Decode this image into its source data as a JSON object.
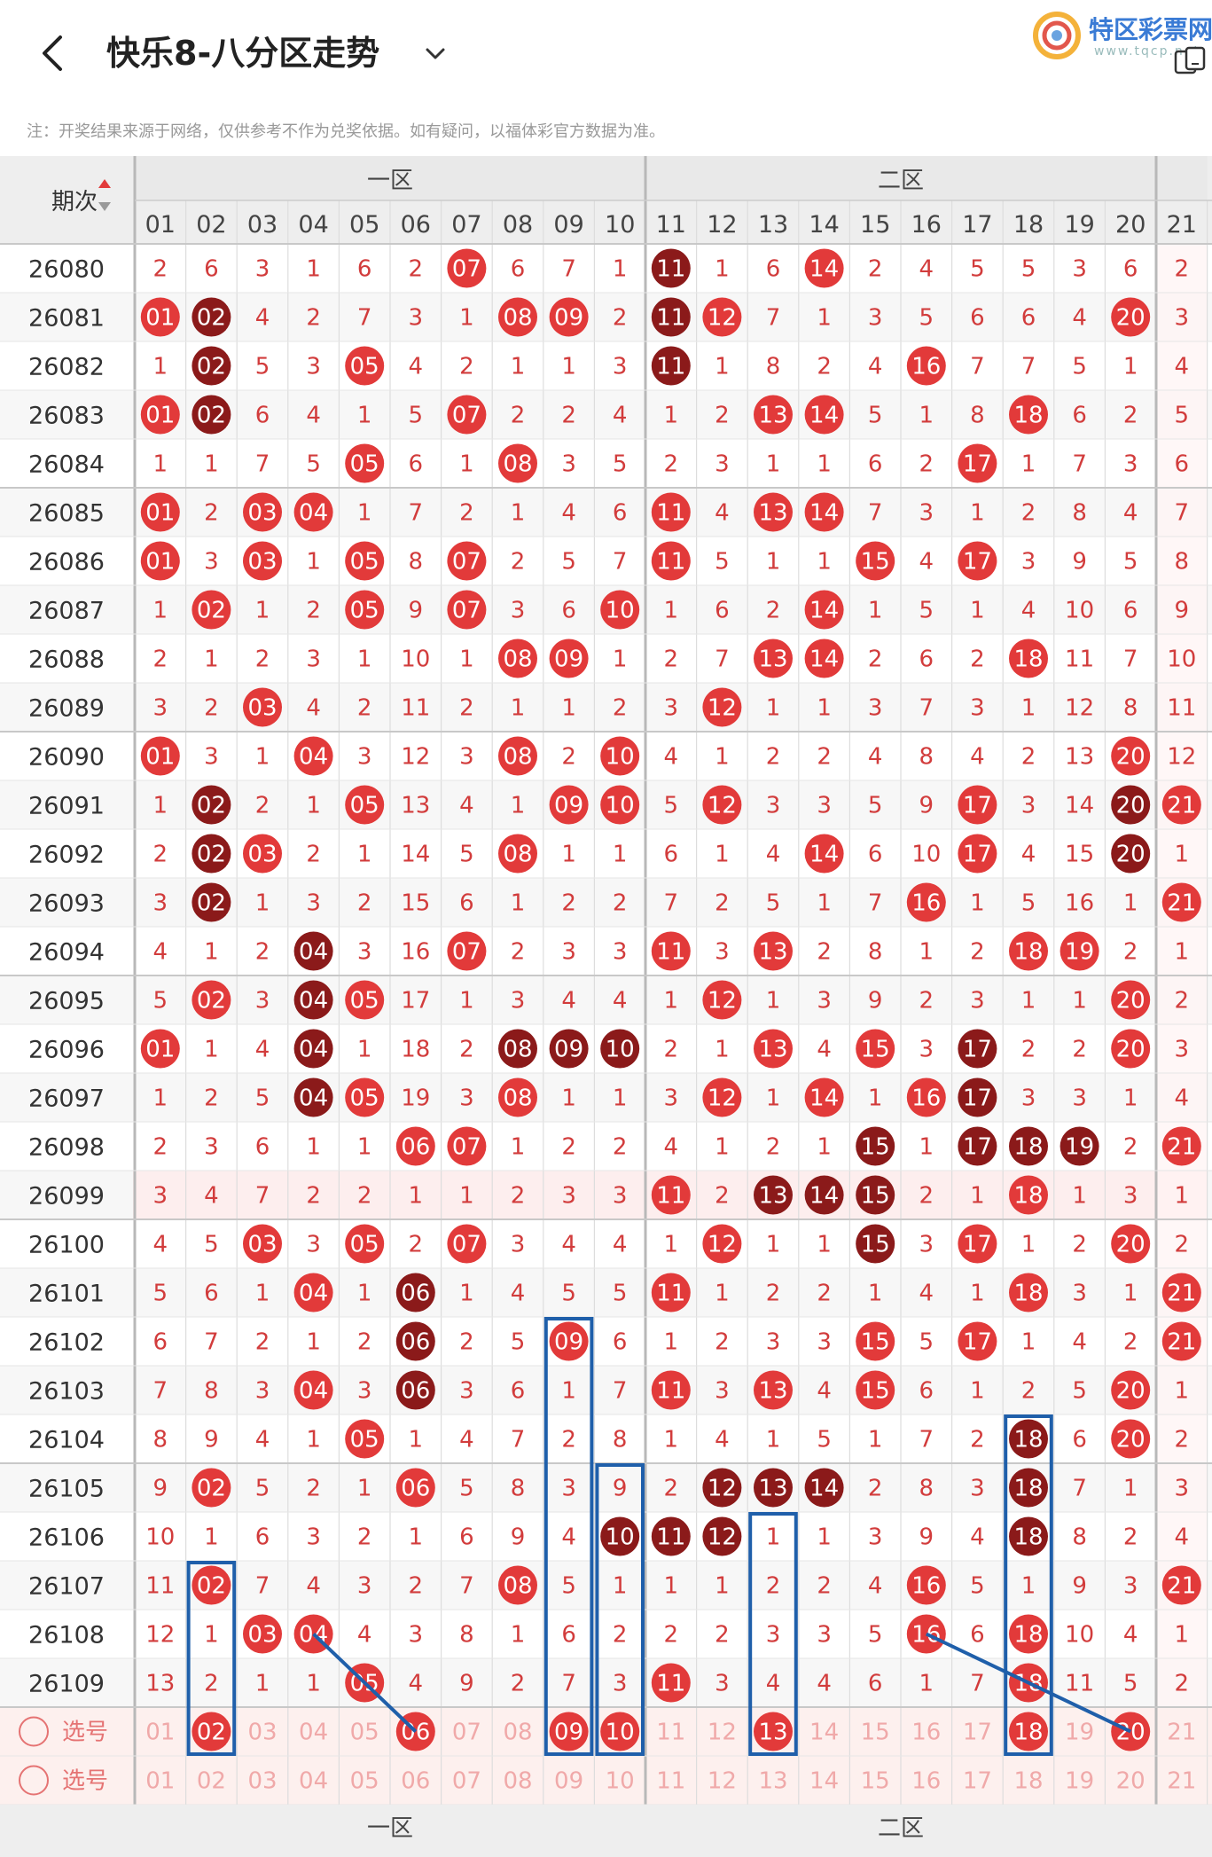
{
  "header": {
    "title": "快乐8-八分区走势",
    "brand_name": "特区彩票网",
    "brand_url": "www.tqcp.net"
  },
  "notice": "注：开奖结果来源于网络，仅供参考不作为兑奖依据。如有疑问，以福体彩官方数据为准。",
  "table": {
    "issue_header": "期次",
    "zones": [
      "一区",
      "二区"
    ],
    "columns": [
      "01",
      "02",
      "03",
      "04",
      "05",
      "06",
      "07",
      "08",
      "09",
      "10",
      "11",
      "12",
      "13",
      "14",
      "15",
      "16",
      "17",
      "18",
      "19",
      "20",
      "21"
    ],
    "select_label": "选号",
    "rows": [
      {
        "issue": "26080",
        "cells": [
          2,
          6,
          3,
          1,
          6,
          2,
          "07",
          6,
          7,
          1,
          "11",
          1,
          6,
          "14",
          2,
          4,
          5,
          5,
          3,
          6,
          2
        ]
      },
      {
        "issue": "26081",
        "cells": [
          "01",
          "02",
          4,
          2,
          7,
          3,
          1,
          "08",
          "09",
          2,
          "11",
          "12",
          7,
          1,
          3,
          5,
          6,
          6,
          4,
          "20",
          3
        ]
      },
      {
        "issue": "26082",
        "cells": [
          1,
          "02",
          5,
          3,
          "05",
          4,
          2,
          1,
          1,
          3,
          "11",
          1,
          8,
          2,
          4,
          "16",
          7,
          7,
          5,
          1,
          4
        ]
      },
      {
        "issue": "26083",
        "cells": [
          "01",
          "02",
          6,
          4,
          1,
          5,
          "07",
          2,
          2,
          4,
          1,
          2,
          "13",
          "14",
          5,
          1,
          8,
          "18",
          6,
          2,
          5
        ]
      },
      {
        "issue": "26084",
        "cells": [
          1,
          1,
          7,
          5,
          "05",
          6,
          1,
          "08",
          3,
          5,
          2,
          3,
          1,
          1,
          6,
          2,
          "17",
          1,
          7,
          3,
          6
        ]
      },
      {
        "issue": "26085",
        "cells": [
          "01",
          2,
          "03",
          "04",
          1,
          7,
          2,
          1,
          4,
          6,
          "11",
          4,
          "13",
          "14",
          7,
          3,
          1,
          2,
          8,
          4,
          7
        ]
      },
      {
        "issue": "26086",
        "cells": [
          "01",
          3,
          "03",
          1,
          "05",
          8,
          "07",
          2,
          5,
          7,
          "11",
          5,
          1,
          1,
          "15",
          4,
          "17",
          3,
          9,
          5,
          8
        ]
      },
      {
        "issue": "26087",
        "cells": [
          1,
          "02",
          1,
          2,
          "05",
          9,
          "07",
          3,
          6,
          "10",
          1,
          6,
          2,
          "14",
          1,
          5,
          1,
          4,
          10,
          6,
          9
        ]
      },
      {
        "issue": "26088",
        "cells": [
          2,
          1,
          2,
          3,
          1,
          10,
          1,
          "08",
          "09",
          1,
          2,
          7,
          "13",
          "14",
          2,
          6,
          2,
          "18",
          11,
          7,
          10
        ]
      },
      {
        "issue": "26089",
        "cells": [
          3,
          2,
          "03",
          4,
          2,
          11,
          2,
          1,
          1,
          2,
          3,
          "12",
          1,
          1,
          3,
          7,
          3,
          1,
          12,
          8,
          11
        ]
      },
      {
        "issue": "26090",
        "cells": [
          "01",
          3,
          1,
          "04",
          3,
          12,
          3,
          "08",
          2,
          "10",
          4,
          1,
          2,
          2,
          4,
          8,
          4,
          2,
          13,
          "20",
          12
        ]
      },
      {
        "issue": "26091",
        "cells": [
          1,
          "02",
          2,
          1,
          "05",
          13,
          4,
          1,
          "09",
          "10",
          5,
          "12",
          3,
          3,
          5,
          9,
          "17",
          3,
          14,
          "20",
          "21"
        ]
      },
      {
        "issue": "26092",
        "cells": [
          2,
          "02",
          "03",
          2,
          1,
          14,
          5,
          "08",
          1,
          1,
          6,
          1,
          4,
          "14",
          6,
          10,
          "17",
          4,
          15,
          "20",
          1
        ]
      },
      {
        "issue": "26093",
        "cells": [
          3,
          "02",
          1,
          3,
          2,
          15,
          6,
          1,
          2,
          2,
          7,
          2,
          5,
          1,
          7,
          "16",
          1,
          5,
          16,
          1,
          "21"
        ]
      },
      {
        "issue": "26094",
        "cells": [
          4,
          1,
          2,
          "04",
          3,
          16,
          "07",
          2,
          3,
          3,
          "11",
          3,
          "13",
          2,
          8,
          1,
          2,
          "18",
          "19",
          2,
          1
        ]
      },
      {
        "issue": "26095",
        "cells": [
          5,
          "02",
          3,
          "04",
          "05",
          17,
          1,
          3,
          4,
          4,
          1,
          "12",
          1,
          3,
          9,
          2,
          3,
          1,
          1,
          "20",
          2
        ]
      },
      {
        "issue": "26096",
        "cells": [
          "01",
          1,
          4,
          "04",
          1,
          18,
          2,
          "08",
          "09",
          "10",
          2,
          1,
          "13",
          4,
          "15",
          3,
          "17",
          2,
          2,
          "20",
          3
        ]
      },
      {
        "issue": "26097",
        "cells": [
          1,
          2,
          5,
          "04",
          "05",
          19,
          3,
          "08",
          1,
          1,
          3,
          "12",
          1,
          "14",
          1,
          "16",
          "17",
          3,
          3,
          1,
          4
        ]
      },
      {
        "issue": "26098",
        "cells": [
          2,
          3,
          6,
          1,
          1,
          "06",
          "07",
          1,
          2,
          2,
          4,
          1,
          2,
          1,
          "15",
          1,
          "17",
          "18",
          "19",
          2,
          "21"
        ]
      },
      {
        "issue": "26099",
        "cells": [
          3,
          4,
          7,
          2,
          2,
          1,
          1,
          2,
          3,
          3,
          "11",
          2,
          "13",
          "14",
          "15",
          2,
          1,
          "18",
          1,
          3,
          1
        ]
      },
      {
        "issue": "26100",
        "cells": [
          4,
          5,
          "03",
          3,
          "05",
          2,
          "07",
          3,
          4,
          4,
          1,
          "12",
          1,
          1,
          "15",
          3,
          "17",
          1,
          2,
          "20",
          2
        ]
      },
      {
        "issue": "26101",
        "cells": [
          5,
          6,
          1,
          "04",
          1,
          "06",
          1,
          4,
          5,
          5,
          "11",
          1,
          2,
          2,
          1,
          4,
          1,
          "18",
          3,
          1,
          "21"
        ]
      },
      {
        "issue": "26102",
        "cells": [
          6,
          7,
          2,
          1,
          2,
          "06",
          2,
          5,
          "09",
          6,
          1,
          2,
          3,
          3,
          "15",
          5,
          "17",
          1,
          4,
          2,
          "21"
        ]
      },
      {
        "issue": "26103",
        "cells": [
          7,
          8,
          3,
          "04",
          3,
          "06",
          3,
          6,
          1,
          7,
          "11",
          3,
          "13",
          4,
          "15",
          6,
          1,
          2,
          5,
          "20",
          1
        ]
      },
      {
        "issue": "26104",
        "cells": [
          8,
          9,
          4,
          1,
          "05",
          1,
          4,
          7,
          2,
          8,
          1,
          4,
          1,
          5,
          1,
          7,
          2,
          "18",
          6,
          "20",
          2
        ]
      },
      {
        "issue": "26105",
        "cells": [
          9,
          "02",
          5,
          2,
          1,
          "06",
          5,
          8,
          3,
          9,
          2,
          "12",
          "13",
          "14",
          2,
          8,
          3,
          "18",
          7,
          1,
          3
        ]
      },
      {
        "issue": "26106",
        "cells": [
          10,
          1,
          6,
          3,
          2,
          1,
          6,
          9,
          4,
          "10",
          "11",
          "12",
          1,
          1,
          3,
          9,
          4,
          "18",
          8,
          2,
          4
        ]
      },
      {
        "issue": "26107",
        "cells": [
          11,
          "02",
          7,
          4,
          3,
          2,
          7,
          "08",
          5,
          1,
          1,
          1,
          2,
          2,
          4,
          "16",
          5,
          1,
          9,
          3,
          "21"
        ]
      },
      {
        "issue": "26108",
        "cells": [
          12,
          1,
          "03",
          "04",
          4,
          3,
          8,
          1,
          6,
          2,
          2,
          2,
          3,
          3,
          5,
          "16",
          6,
          "18",
          10,
          4,
          1
        ]
      },
      {
        "issue": "26109",
        "cells": [
          13,
          2,
          1,
          1,
          "05",
          4,
          9,
          2,
          7,
          3,
          "11",
          3,
          4,
          4,
          6,
          1,
          7,
          "18",
          11,
          5,
          2
        ]
      }
    ],
    "dark_balls": [
      "26080-11",
      "26081-02",
      "26081-11",
      "26082-02",
      "26082-11",
      "26083-02",
      "26091-02",
      "26091-20",
      "26092-02",
      "26092-20",
      "26093-02",
      "26094-04",
      "26095-04",
      "26096-04",
      "26096-08",
      "26096-09",
      "26096-10",
      "26096-17",
      "26097-04",
      "26097-17",
      "26098-15",
      "26098-17",
      "26098-18",
      "26098-19",
      "26099-13",
      "26099-14",
      "26099-15",
      "26100-15",
      "26101-06",
      "26102-06",
      "26103-06",
      "26104-18",
      "26105-12",
      "26105-13",
      "26105-14",
      "26105-18",
      "26106-10",
      "26106-11",
      "26106-12",
      "26106-18"
    ],
    "selected_row": {
      "issue": "选号",
      "picks": [
        "02",
        "06",
        "09",
        "10",
        "13",
        "18",
        "20"
      ]
    }
  },
  "colors": {
    "ball_red": "#e23a3a",
    "ball_dark": "#8b1a1a",
    "number_text": "#d23c3c",
    "box_blue": "#1f5faa"
  }
}
